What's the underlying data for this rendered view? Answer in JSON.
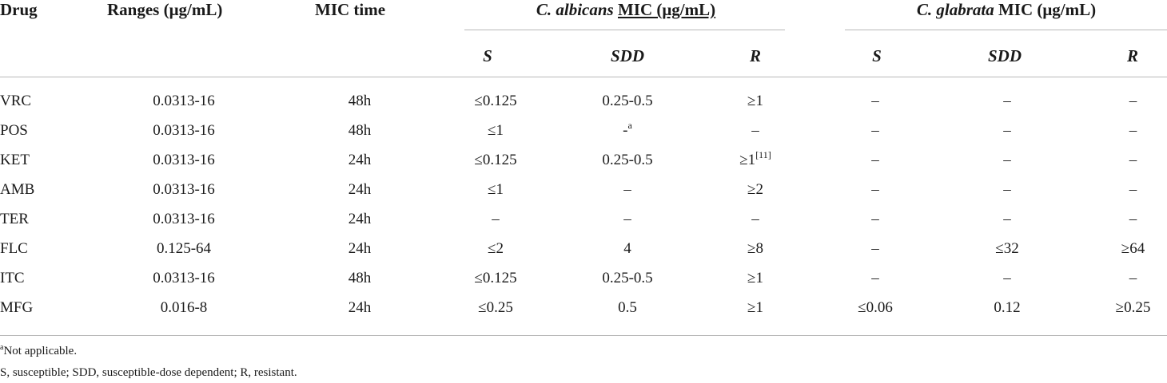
{
  "table": {
    "headers": {
      "drug": "Drug",
      "ranges": "Ranges (μg/mL)",
      "mic_time": "MIC time",
      "albicans_species": "C. albicans",
      "albicans_mic": "MIC (μg/mL)",
      "glabrata_species": "C. glabrata",
      "glabrata_mic": "MIC (μg/mL)"
    },
    "subheaders": {
      "albicans": [
        "S",
        "SDD",
        "R"
      ],
      "glabrata": [
        "S",
        "SDD",
        "R"
      ]
    },
    "rows": [
      {
        "drug": "VRC",
        "range": "0.0313-16",
        "time": "48h",
        "a_s": "≤0.125",
        "a_sdd": "0.25-0.5",
        "a_sdd_sup": "",
        "a_r": "≥1",
        "a_r_sup": "",
        "g_s": "–",
        "g_sdd": "–",
        "g_r": "–"
      },
      {
        "drug": "POS",
        "range": "0.0313-16",
        "time": "48h",
        "a_s": "≤1",
        "a_sdd": "-",
        "a_sdd_sup": "a",
        "a_r": "–",
        "a_r_sup": "",
        "g_s": "–",
        "g_sdd": "–",
        "g_r": "–"
      },
      {
        "drug": "KET",
        "range": "0.0313-16",
        "time": "24h",
        "a_s": "≤0.125",
        "a_sdd": "0.25-0.5",
        "a_sdd_sup": "",
        "a_r": "≥1",
        "a_r_sup": "[11]",
        "g_s": "–",
        "g_sdd": "–",
        "g_r": "–"
      },
      {
        "drug": "AMB",
        "range": "0.0313-16",
        "time": "24h",
        "a_s": "≤1",
        "a_sdd": "–",
        "a_sdd_sup": "",
        "a_r": "≥2",
        "a_r_sup": "",
        "g_s": "–",
        "g_sdd": "–",
        "g_r": "–"
      },
      {
        "drug": "TER",
        "range": "0.0313-16",
        "time": "24h",
        "a_s": "–",
        "a_sdd": "–",
        "a_sdd_sup": "",
        "a_r": "–",
        "a_r_sup": "",
        "g_s": "–",
        "g_sdd": "–",
        "g_r": "–"
      },
      {
        "drug": "FLC",
        "range": "0.125-64",
        "time": "24h",
        "a_s": "≤2",
        "a_sdd": "4",
        "a_sdd_sup": "",
        "a_r": "≥8",
        "a_r_sup": "",
        "g_s": "–",
        "g_sdd": "≤32",
        "g_r": "≥64"
      },
      {
        "drug": "ITC",
        "range": "0.0313-16",
        "time": "48h",
        "a_s": "≤0.125",
        "a_sdd": "0.25-0.5",
        "a_sdd_sup": "",
        "a_r": "≥1",
        "a_r_sup": "",
        "g_s": "–",
        "g_sdd": "–",
        "g_r": "–"
      },
      {
        "drug": "MFG",
        "range": "0.016-8",
        "time": "24h",
        "a_s": "≤0.25",
        "a_sdd": "0.5",
        "a_sdd_sup": "",
        "a_r": "≥1",
        "a_r_sup": "",
        "g_s": "≤0.06",
        "g_sdd": "0.12",
        "g_r": "≥0.25"
      }
    ]
  },
  "footnotes": {
    "a_mark": "a",
    "a_text": "Not applicable.",
    "abbreviations": "S, susceptible; SDD, susceptible-dose dependent; R, resistant."
  }
}
